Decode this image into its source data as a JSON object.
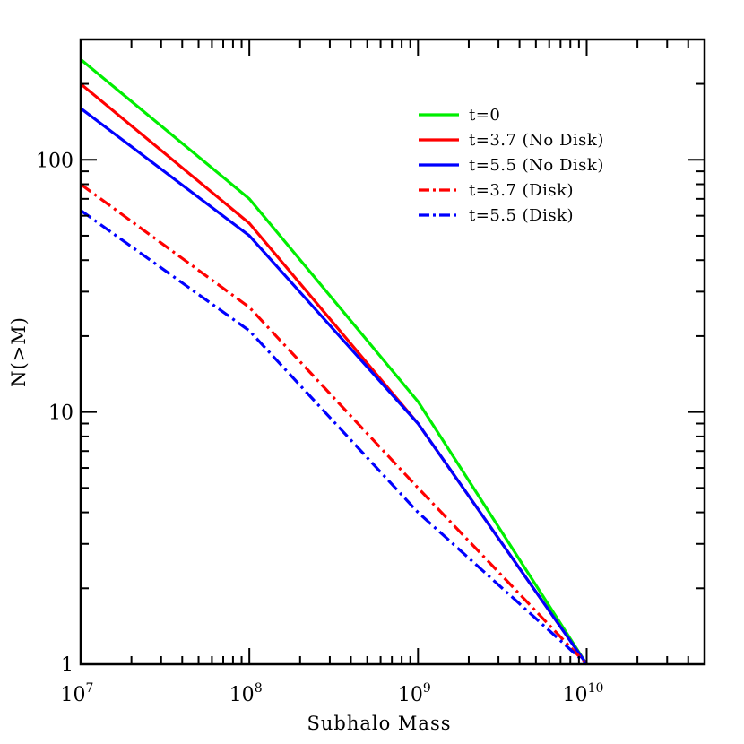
{
  "chart_data": {
    "type": "line",
    "xlabel": "Subhalo Mass",
    "ylabel": "N(>M)",
    "x_scale": "log",
    "y_scale": "log",
    "xlim": [
      10000000,
      50000000000
    ],
    "ylim": [
      1,
      300
    ],
    "x_tick_labels": [
      {
        "value": 10000000,
        "base": "10",
        "exp": "7"
      },
      {
        "value": 100000000,
        "base": "10",
        "exp": "8"
      },
      {
        "value": 1000000000,
        "base": "10",
        "exp": "9"
      },
      {
        "value": 10000000000,
        "base": "10",
        "exp": "10"
      }
    ],
    "y_tick_labels": [
      {
        "value": 1,
        "label": "1"
      },
      {
        "value": 10,
        "label": "10"
      },
      {
        "value": 100,
        "label": "100"
      }
    ],
    "legend_position": "top-right",
    "series": [
      {
        "name": "t=0",
        "color": "#00ee00",
        "dash": "solid",
        "x": [
          10000000,
          100000000,
          1000000000,
          10000000000
        ],
        "y": [
          250,
          70,
          11,
          1
        ]
      },
      {
        "name": "t=3.7 (No Disk)",
        "color": "#ff0000",
        "dash": "solid",
        "x": [
          10000000,
          100000000,
          1000000000,
          10000000000
        ],
        "y": [
          200,
          56,
          9,
          1
        ]
      },
      {
        "name": "t=5.5 (No Disk)",
        "color": "#0000ff",
        "dash": "solid",
        "x": [
          10000000,
          100000000,
          1000000000,
          10000000000
        ],
        "y": [
          160,
          50,
          9,
          1
        ]
      },
      {
        "name": "t=3.7 (Disk)",
        "color": "#ff0000",
        "dash": "dashdot",
        "x": [
          10000000,
          100000000,
          1000000000,
          10000000000
        ],
        "y": [
          80,
          26,
          5,
          1
        ]
      },
      {
        "name": "t=5.5 (Disk)",
        "color": "#0000ff",
        "dash": "dashdot",
        "x": [
          10000000,
          100000000,
          1000000000,
          10000000000
        ],
        "y": [
          63,
          21,
          4,
          1
        ]
      }
    ]
  }
}
